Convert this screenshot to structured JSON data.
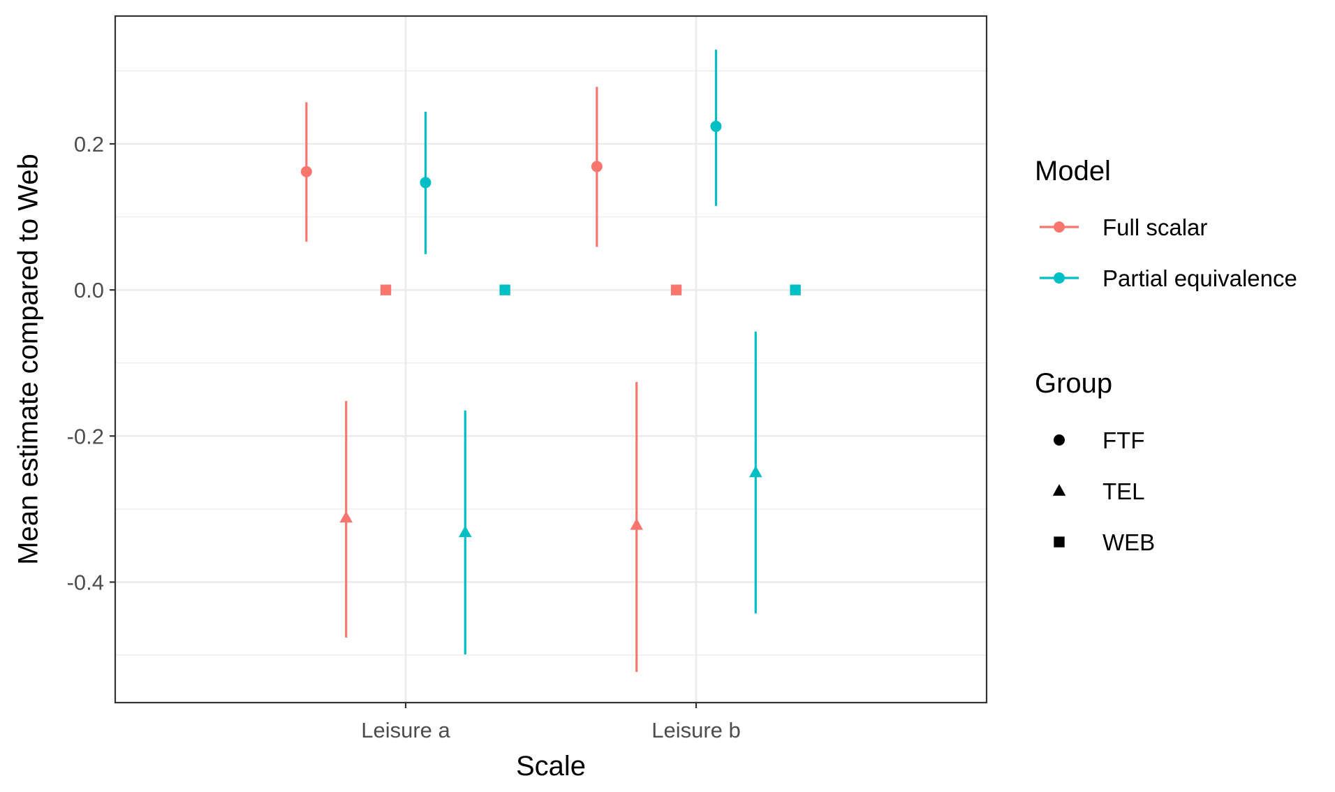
{
  "chart_data": {
    "type": "scatter",
    "subtype": "point-range (dodged)",
    "xlabel": "Scale",
    "ylabel": "Mean estimate compared to Web",
    "categories": [
      "Leisure a",
      "Leisure b"
    ],
    "ylim": [
      -0.565,
      0.375
    ],
    "yticks": [
      -0.4,
      -0.2,
      0.0,
      0.2
    ],
    "ytick_labels": [
      "-0.4",
      "-0.2",
      "0.0",
      "0.2"
    ],
    "grid": true,
    "legend_position": "right",
    "colors": {
      "Full scalar": "#F8766D",
      "Partial equivalence": "#00BFC4",
      "frame": "#333333",
      "grid": "#EBEBEB"
    },
    "legend": {
      "model_title": "Model",
      "model_items": [
        "Full scalar",
        "Partial equivalence"
      ],
      "group_title": "Group",
      "group_items": [
        "FTF",
        "TEL",
        "WEB"
      ],
      "group_shapes": [
        "circle",
        "triangle",
        "square"
      ]
    },
    "dodge_order": [
      [
        "Full scalar",
        "FTF"
      ],
      [
        "Full scalar",
        "TEL"
      ],
      [
        "Full scalar",
        "WEB"
      ],
      [
        "Partial equivalence",
        "FTF"
      ],
      [
        "Partial equivalence",
        "TEL"
      ],
      [
        "Partial equivalence",
        "WEB"
      ]
    ],
    "series": [
      {
        "model": "Full scalar",
        "group": "FTF",
        "shape": "circle",
        "points": [
          {
            "x": "Leisure a",
            "y": 0.162,
            "low": 0.066,
            "high": 0.257
          },
          {
            "x": "Leisure b",
            "y": 0.169,
            "low": 0.059,
            "high": 0.278
          }
        ]
      },
      {
        "model": "Full scalar",
        "group": "TEL",
        "shape": "triangle",
        "points": [
          {
            "x": "Leisure a",
            "y": -0.312,
            "low": -0.476,
            "high": -0.152
          },
          {
            "x": "Leisure b",
            "y": -0.322,
            "low": -0.523,
            "high": -0.126
          }
        ]
      },
      {
        "model": "Full scalar",
        "group": "WEB",
        "shape": "square",
        "points": [
          {
            "x": "Leisure a",
            "y": 0.0
          },
          {
            "x": "Leisure b",
            "y": 0.0
          }
        ]
      },
      {
        "model": "Partial equivalence",
        "group": "FTF",
        "shape": "circle",
        "points": [
          {
            "x": "Leisure a",
            "y": 0.147,
            "low": 0.049,
            "high": 0.244
          },
          {
            "x": "Leisure b",
            "y": 0.224,
            "low": 0.115,
            "high": 0.329
          }
        ]
      },
      {
        "model": "Partial equivalence",
        "group": "TEL",
        "shape": "triangle",
        "points": [
          {
            "x": "Leisure a",
            "y": -0.332,
            "low": -0.499,
            "high": -0.165
          },
          {
            "x": "Leisure b",
            "y": -0.25,
            "low": -0.443,
            "high": -0.057
          }
        ]
      },
      {
        "model": "Partial equivalence",
        "group": "WEB",
        "shape": "square",
        "points": [
          {
            "x": "Leisure a",
            "y": 0.0
          },
          {
            "x": "Leisure b",
            "y": 0.0
          }
        ]
      }
    ]
  }
}
